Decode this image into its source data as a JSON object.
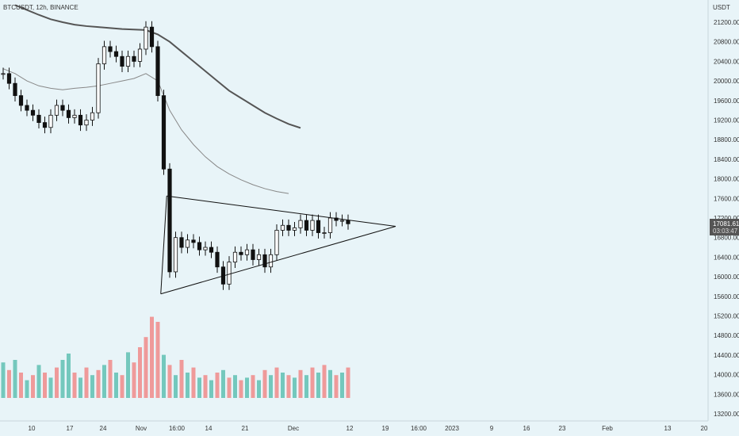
{
  "header": {
    "symbol_line": "BTCUSDT, 12h, BINANCE"
  },
  "axis": {
    "currency": "USDT"
  },
  "price_badge": {
    "price": "17081.61",
    "countdown": "03:03:47"
  },
  "colors": {
    "background": "#e8f4f8",
    "candle": "#111111",
    "vol_up": "#5fbfb3",
    "vol_down": "#f08a8a",
    "ma_long": "#555555",
    "ma_mid": "#888888"
  },
  "chart_data": {
    "type": "candlestick",
    "title": "BTCUSDT, 12h, BINANCE",
    "y_axis_label": "USDT",
    "y_ticks": [
      21200,
      20800,
      20400,
      20000,
      19600,
      19200,
      18800,
      18400,
      18000,
      17600,
      17200,
      16800,
      16400,
      16000,
      15600,
      15200,
      14800,
      14400,
      14000,
      13600,
      13200
    ],
    "y_range": [
      13000,
      21500
    ],
    "x_ticks": [
      "10",
      "17",
      "24",
      "Nov",
      "16:00",
      "14",
      "21",
      "Dec",
      "12",
      "19",
      "16:00",
      "2023",
      "9",
      "16",
      "23",
      "Feb",
      "13",
      "20"
    ],
    "close_path": [
      {
        "x": 0.0,
        "y": 20150
      },
      {
        "x": 1.0,
        "y": 19950
      },
      {
        "x": 2.0,
        "y": 19700
      },
      {
        "x": 3.0,
        "y": 19500
      },
      {
        "x": 4.0,
        "y": 19400
      },
      {
        "x": 5.0,
        "y": 19300
      },
      {
        "x": 6.0,
        "y": 19150
      },
      {
        "x": 7.0,
        "y": 19050
      },
      {
        "x": 8.0,
        "y": 19300
      },
      {
        "x": 9.0,
        "y": 19500
      },
      {
        "x": 10.0,
        "y": 19400
      },
      {
        "x": 11.0,
        "y": 19250
      },
      {
        "x": 12.0,
        "y": 19300
      },
      {
        "x": 13.0,
        "y": 19100
      },
      {
        "x": 14.0,
        "y": 19200
      },
      {
        "x": 15.0,
        "y": 19350
      },
      {
        "x": 16.0,
        "y": 20350
      },
      {
        "x": 17.0,
        "y": 20700
      },
      {
        "x": 18.0,
        "y": 20600
      },
      {
        "x": 19.0,
        "y": 20500
      },
      {
        "x": 20.0,
        "y": 20300
      },
      {
        "x": 21.0,
        "y": 20500
      },
      {
        "x": 22.0,
        "y": 20400
      },
      {
        "x": 23.0,
        "y": 20650
      },
      {
        "x": 24.0,
        "y": 21100
      },
      {
        "x": 25.0,
        "y": 20700
      },
      {
        "x": 26.0,
        "y": 19700
      },
      {
        "x": 27.0,
        "y": 18200
      },
      {
        "x": 28.0,
        "y": 16100
      },
      {
        "x": 29.0,
        "y": 16800
      },
      {
        "x": 30.0,
        "y": 16600
      },
      {
        "x": 31.0,
        "y": 16750
      },
      {
        "x": 32.0,
        "y": 16700
      },
      {
        "x": 33.0,
        "y": 16550
      },
      {
        "x": 34.0,
        "y": 16600
      },
      {
        "x": 35.0,
        "y": 16500
      },
      {
        "x": 36.0,
        "y": 16200
      },
      {
        "x": 37.0,
        "y": 15850
      },
      {
        "x": 38.0,
        "y": 16300
      },
      {
        "x": 39.0,
        "y": 16500
      },
      {
        "x": 40.0,
        "y": 16450
      },
      {
        "x": 41.0,
        "y": 16550
      },
      {
        "x": 42.0,
        "y": 16350
      },
      {
        "x": 43.0,
        "y": 16450
      },
      {
        "x": 44.0,
        "y": 16200
      },
      {
        "x": 45.0,
        "y": 16450
      },
      {
        "x": 46.0,
        "y": 16950
      },
      {
        "x": 47.0,
        "y": 17050
      },
      {
        "x": 48.0,
        "y": 16950
      },
      {
        "x": 49.0,
        "y": 17000
      },
      {
        "x": 50.0,
        "y": 17150
      },
      {
        "x": 51.0,
        "y": 16950
      },
      {
        "x": 52.0,
        "y": 17150
      },
      {
        "x": 53.0,
        "y": 16900
      },
      {
        "x": 54.0,
        "y": 16900
      },
      {
        "x": 55.0,
        "y": 17200
      },
      {
        "x": 56.0,
        "y": 17150
      },
      {
        "x": 57.0,
        "y": 17150
      },
      {
        "x": 58.0,
        "y": 17082
      }
    ],
    "moving_averages": [
      {
        "name": "",
        "points": [
          {
            "x": 2,
            "y": 21550
          },
          {
            "x": 4,
            "y": 21450
          },
          {
            "x": 6,
            "y": 21350
          },
          {
            "x": 8,
            "y": 21260
          },
          {
            "x": 10,
            "y": 21200
          },
          {
            "x": 12,
            "y": 21150
          },
          {
            "x": 14,
            "y": 21120
          },
          {
            "x": 16,
            "y": 21100
          },
          {
            "x": 18,
            "y": 21080
          },
          {
            "x": 20,
            "y": 21060
          },
          {
            "x": 22,
            "y": 21050
          },
          {
            "x": 24,
            "y": 21040
          },
          {
            "x": 26,
            "y": 20950
          },
          {
            "x": 28,
            "y": 20800
          },
          {
            "x": 30,
            "y": 20600
          },
          {
            "x": 32,
            "y": 20400
          },
          {
            "x": 34,
            "y": 20200
          },
          {
            "x": 36,
            "y": 20000
          },
          {
            "x": 38,
            "y": 19800
          },
          {
            "x": 40,
            "y": 19650
          },
          {
            "x": 42,
            "y": 19500
          },
          {
            "x": 44,
            "y": 19350
          },
          {
            "x": 46,
            "y": 19230
          },
          {
            "x": 48,
            "y": 19120
          },
          {
            "x": 50,
            "y": 19040
          }
        ]
      },
      {
        "name": "",
        "points": [
          {
            "x": 0,
            "y": 20250
          },
          {
            "x": 2,
            "y": 20150
          },
          {
            "x": 4,
            "y": 20000
          },
          {
            "x": 6,
            "y": 19900
          },
          {
            "x": 8,
            "y": 19850
          },
          {
            "x": 10,
            "y": 19820
          },
          {
            "x": 12,
            "y": 19850
          },
          {
            "x": 14,
            "y": 19870
          },
          {
            "x": 16,
            "y": 19900
          },
          {
            "x": 18,
            "y": 19950
          },
          {
            "x": 20,
            "y": 20000
          },
          {
            "x": 22,
            "y": 20050
          },
          {
            "x": 24,
            "y": 20150
          },
          {
            "x": 26,
            "y": 20000
          },
          {
            "x": 28,
            "y": 19400
          },
          {
            "x": 30,
            "y": 19000
          },
          {
            "x": 32,
            "y": 18700
          },
          {
            "x": 34,
            "y": 18450
          },
          {
            "x": 36,
            "y": 18250
          },
          {
            "x": 38,
            "y": 18100
          },
          {
            "x": 40,
            "y": 17980
          },
          {
            "x": 42,
            "y": 17880
          },
          {
            "x": 44,
            "y": 17800
          },
          {
            "x": 46,
            "y": 17740
          },
          {
            "x": 48,
            "y": 17700
          }
        ]
      }
    ],
    "triangle_pattern": {
      "apex": {
        "x": 66,
        "y": 17030
      },
      "upper_start": {
        "x": 27.5,
        "y": 17650
      },
      "lower_start": {
        "x": 26.5,
        "y": 15650
      }
    },
    "volume": {
      "values": [
        28,
        22,
        30,
        20,
        14,
        18,
        26,
        20,
        16,
        24,
        30,
        35,
        20,
        16,
        24,
        18,
        22,
        26,
        30,
        20,
        18,
        36,
        28,
        40,
        48,
        64,
        60,
        34,
        26,
        18,
        30,
        20,
        24,
        16,
        18,
        14,
        20,
        22,
        16,
        18,
        14,
        16,
        18,
        14,
        22,
        18,
        24,
        20,
        18,
        16,
        22,
        18,
        24,
        20,
        26,
        22,
        18,
        20,
        24
      ],
      "directions": [
        "up",
        "down",
        "up",
        "down",
        "up",
        "down",
        "up",
        "down",
        "up",
        "down",
        "up",
        "up",
        "down",
        "up",
        "down",
        "up",
        "down",
        "up",
        "down",
        "up",
        "down",
        "up",
        "down",
        "down",
        "down",
        "down",
        "down",
        "up",
        "down",
        "up",
        "down",
        "up",
        "down",
        "up",
        "down",
        "up",
        "down",
        "up",
        "down",
        "up",
        "down",
        "up",
        "down",
        "up",
        "down",
        "up",
        "down",
        "up",
        "down",
        "up",
        "down",
        "up",
        "down",
        "up",
        "down",
        "up",
        "down",
        "up",
        "down"
      ]
    }
  }
}
